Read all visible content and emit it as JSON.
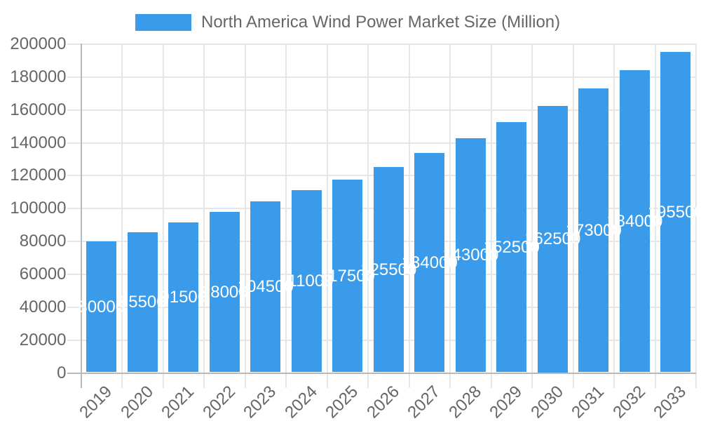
{
  "chart_data": {
    "type": "bar",
    "series_name": "North America Wind Power Market Size (Million)",
    "categories": [
      "2019",
      "2020",
      "2021",
      "2022",
      "2023",
      "2024",
      "2025",
      "2026",
      "2027",
      "2028",
      "2029",
      "2030",
      "2031",
      "2032",
      "2033"
    ],
    "values": [
      80000,
      85500,
      91500,
      98000,
      104500,
      111000,
      117500,
      125500,
      134000,
      143000,
      152500,
      162500,
      173000,
      184000,
      195500
    ],
    "y_ticks": [
      0,
      20000,
      40000,
      60000,
      80000,
      100000,
      120000,
      140000,
      160000,
      180000,
      200000
    ],
    "ylim": [
      0,
      200000
    ],
    "xlabel": "",
    "ylabel": "",
    "grid": true,
    "legend_position": "top",
    "bar_color": "#3a9beb",
    "bar_label_color": "#ffffff",
    "axis_text_color": "#666666",
    "grid_color": "#e6e6e6",
    "zero_line_color": "#b9b9b9"
  }
}
